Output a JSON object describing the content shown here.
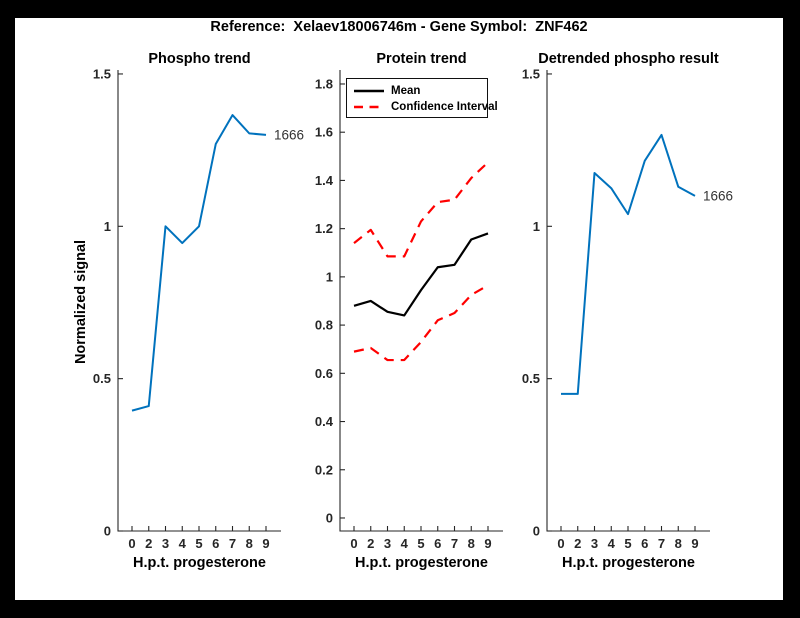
{
  "title": "Reference:  Xelaev18006746m - Gene Symbol:  ZNF462",
  "colors": {
    "blue": "#0072bd",
    "red": "#ff0000",
    "black": "#000000",
    "axis": "#262626"
  },
  "chart_data": [
    {
      "type": "line",
      "name": "phospho-trend",
      "title": "Phospho trend",
      "xlabel": "H.p.t. progesterone",
      "ylabel": "Normalized signal",
      "categories": [
        "0",
        "2",
        "3",
        "4",
        "5",
        "6",
        "7",
        "8",
        "9"
      ],
      "ytick_values": [
        0,
        0.5,
        1,
        1.5
      ],
      "ytick_labels": [
        "0",
        "0.5",
        "1",
        "1.5"
      ],
      "ylim": [
        0,
        1.513
      ],
      "grid": false,
      "series": [
        {
          "name": "phospho-signal",
          "color": "#0072bd",
          "style": "solid",
          "width": 2,
          "values": [
            0.395,
            0.41,
            1.0,
            0.945,
            1.0,
            1.27,
            1.365,
            1.305,
            1.3
          ],
          "end_label": "1666"
        }
      ]
    },
    {
      "type": "line",
      "name": "protein-trend",
      "title": "Protein trend",
      "xlabel": "H.p.t. progesterone",
      "ylabel": "",
      "categories": [
        "0",
        "2",
        "3",
        "4",
        "5",
        "6",
        "7",
        "8",
        "9"
      ],
      "ytick_values": [
        0,
        0.2,
        0.4,
        0.6,
        0.8,
        1,
        1.2,
        1.4,
        1.6,
        1.8
      ],
      "ytick_labels": [
        "0",
        "0.2",
        "0.4",
        "0.6",
        "0.8",
        "1",
        "1.2",
        "1.4",
        "1.6",
        "1.8"
      ],
      "ylim": [
        -0.054,
        1.858
      ],
      "grid": false,
      "legend": {
        "position": "northwest-inside",
        "entries": [
          {
            "label": "Mean",
            "color": "#000000",
            "style": "solid"
          },
          {
            "label": "Confidence Interval",
            "color": "#ff0000",
            "style": "dashed"
          }
        ]
      },
      "series": [
        {
          "name": "mean",
          "color": "#000000",
          "style": "solid",
          "width": 2.2,
          "values": [
            0.88,
            0.9,
            0.855,
            0.84,
            0.945,
            1.04,
            1.05,
            1.155,
            1.18
          ]
        },
        {
          "name": "ci-upper",
          "color": "#ff0000",
          "style": "dashed",
          "width": 2.2,
          "values": [
            1.14,
            1.195,
            1.085,
            1.085,
            1.23,
            1.31,
            1.32,
            1.41,
            1.475
          ]
        },
        {
          "name": "ci-lower",
          "color": "#ff0000",
          "style": "dashed",
          "width": 2.2,
          "values": [
            0.69,
            0.705,
            0.655,
            0.655,
            0.73,
            0.82,
            0.85,
            0.925,
            0.965
          ]
        }
      ]
    },
    {
      "type": "line",
      "name": "detrended-phospho-result",
      "title": "Detrended phospho result",
      "xlabel": "H.p.t. progesterone",
      "ylabel": "",
      "categories": [
        "0",
        "2",
        "3",
        "4",
        "5",
        "6",
        "7",
        "8",
        "9"
      ],
      "ytick_values": [
        0,
        0.5,
        1,
        1.5
      ],
      "ytick_labels": [
        "0",
        "0.5",
        "1",
        "1.5"
      ],
      "ylim": [
        0,
        1.513
      ],
      "grid": false,
      "series": [
        {
          "name": "detrended-signal",
          "color": "#0072bd",
          "style": "solid",
          "width": 2,
          "values": [
            0.45,
            0.45,
            1.175,
            1.125,
            1.04,
            1.215,
            1.3,
            1.13,
            1.1
          ],
          "end_label": "1666"
        }
      ]
    }
  ]
}
